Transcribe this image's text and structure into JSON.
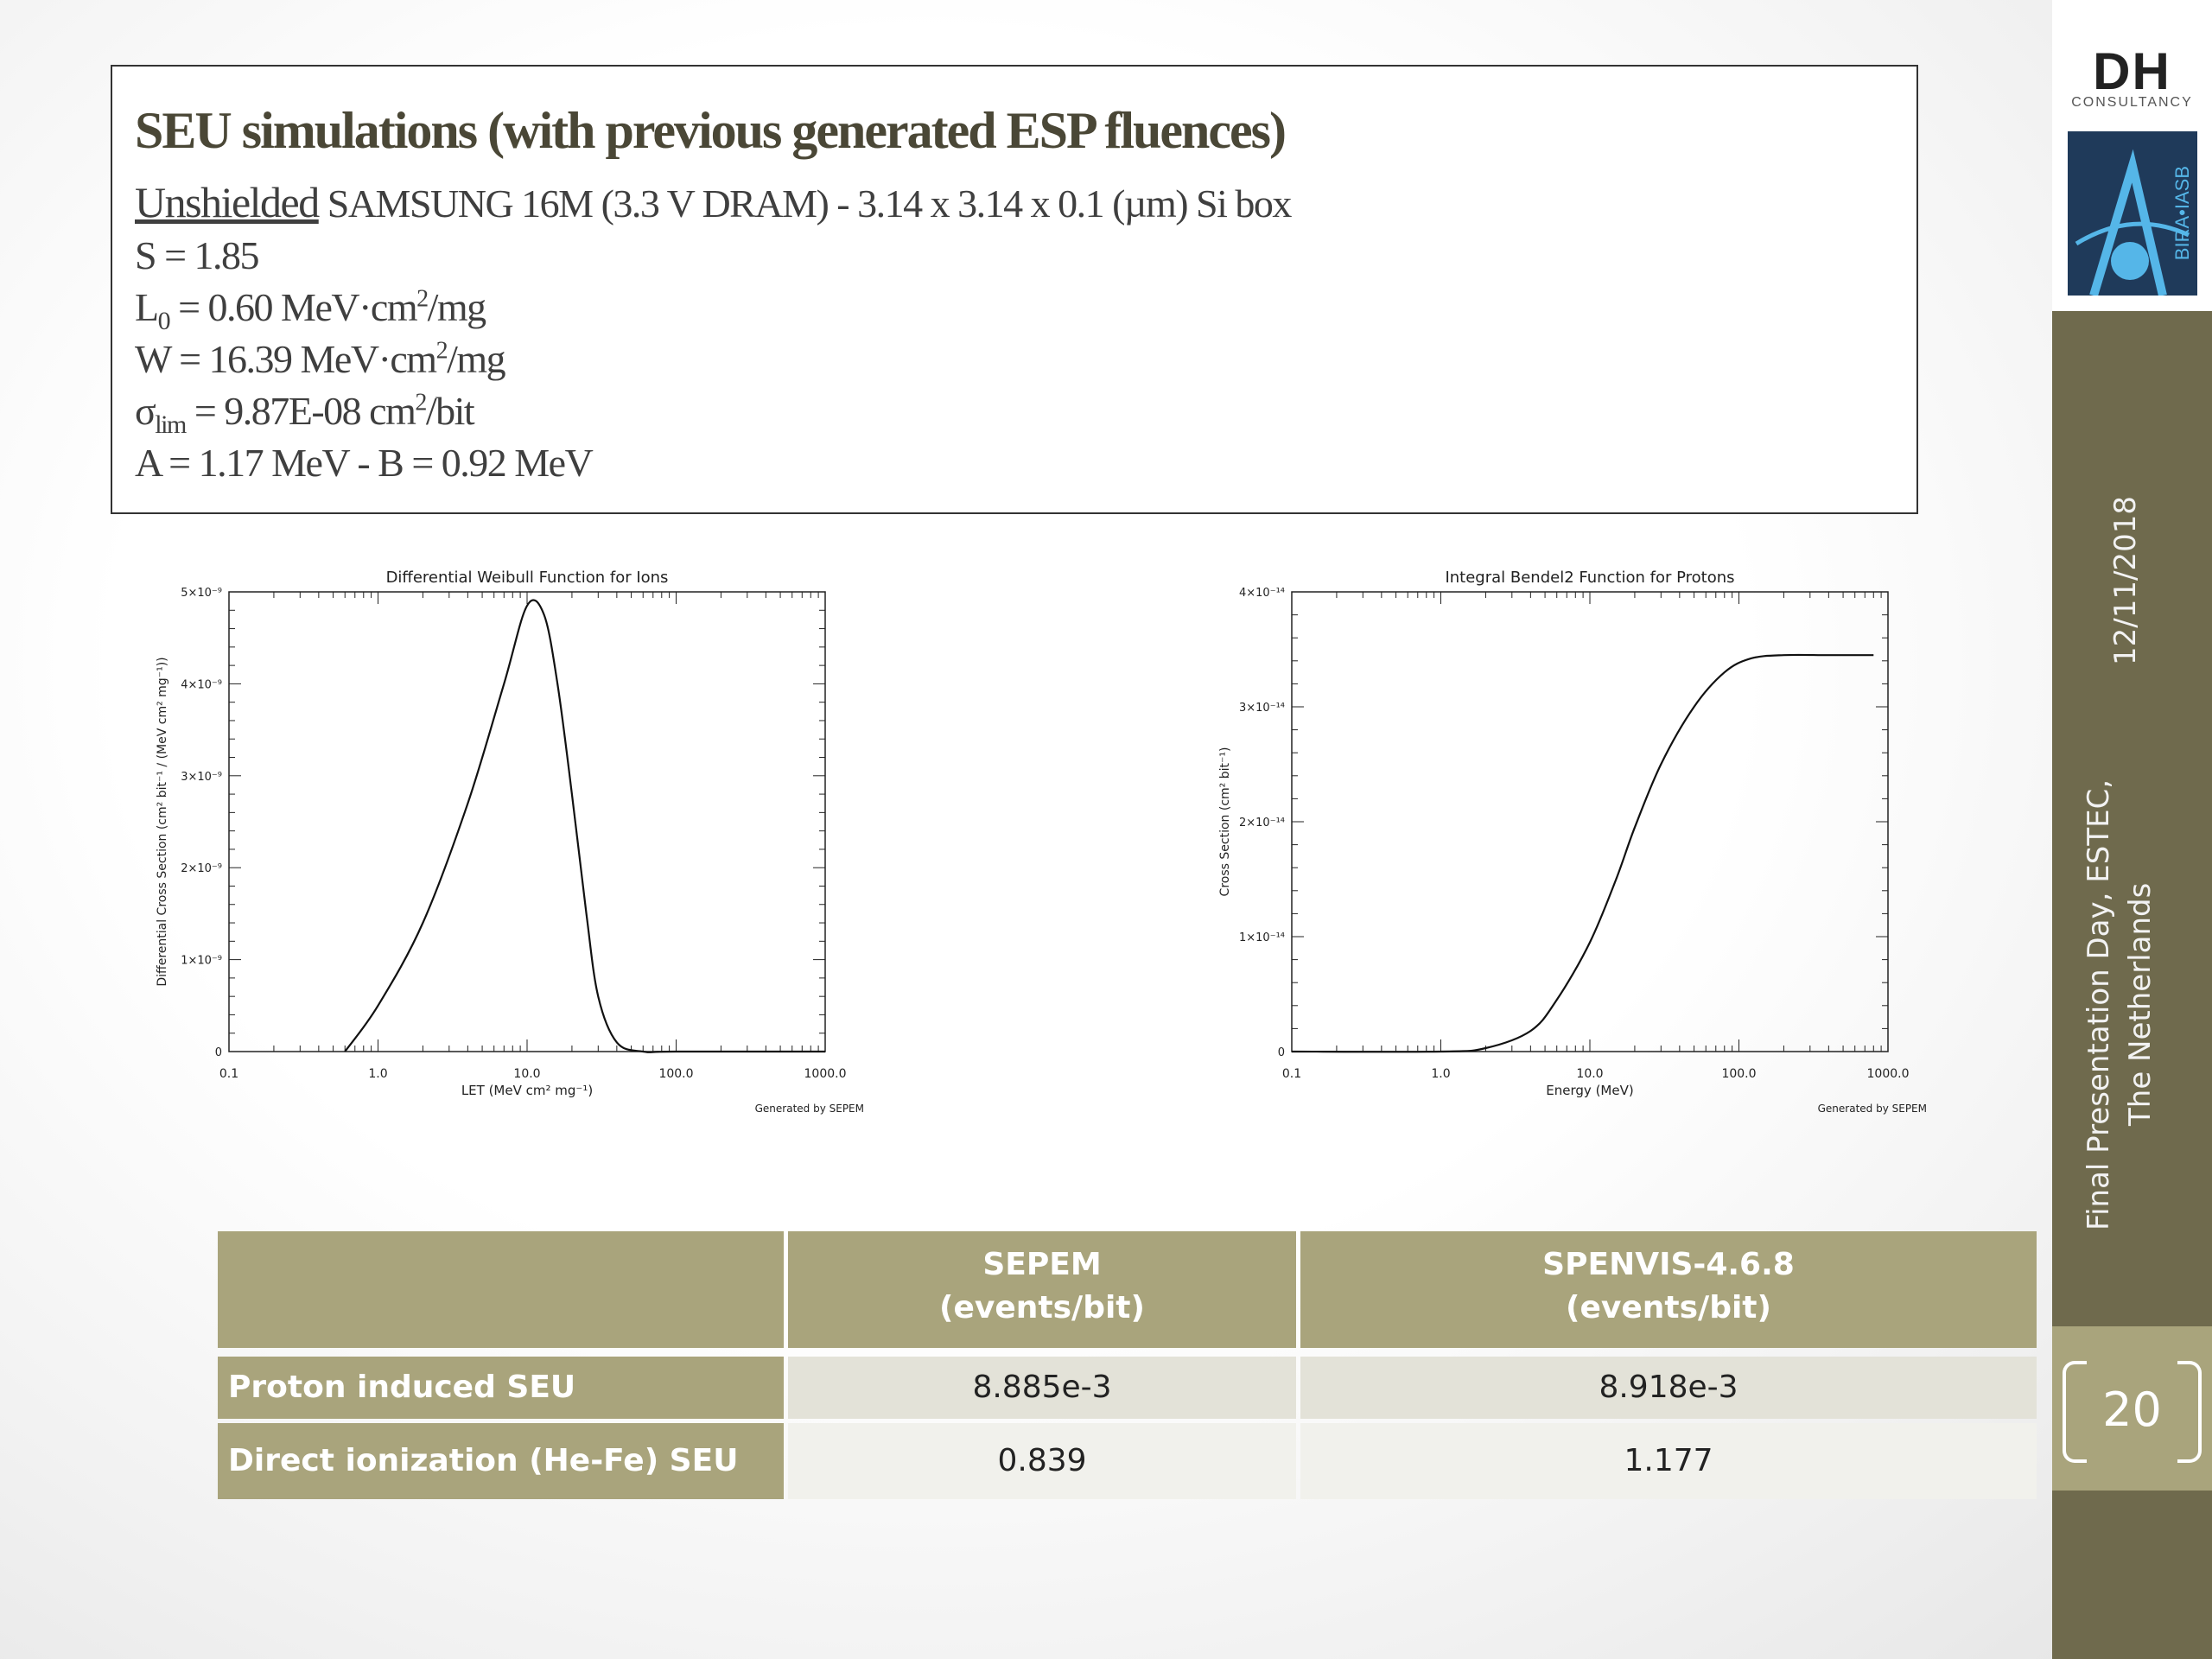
{
  "header": {
    "title": "SEU simulations (with previous generated ESP fluences)",
    "line1_underlined": "Unshielded",
    "line1_rest": " SAMSUNG 16M (3.3 V DRAM) - 3.14 x 3.14 x 0.1 (µm) Si box",
    "s_param": "S = 1.85",
    "l0_sym": "L",
    "l0_sub": "0",
    "l0_rest": " = 0.60 MeV·cm",
    "l0_sup": "2",
    "l0_unit": "/mg",
    "w_rest": "W = 16.39 MeV·cm",
    "w_sup": "2",
    "w_unit": "/mg",
    "sigma_sym": "σ",
    "sigma_sub": "lim",
    "sigma_rest": " = 9.87E-08 cm",
    "sigma_sup": "2",
    "sigma_unit": "/bit",
    "ab": "A = 1.17 MeV  -  B = 0.92 MeV"
  },
  "sidebar": {
    "logo_text": "DH",
    "logo_sub": "CONSULTANCY",
    "logo2_text": "BIRA•IASB",
    "date": "12/11/2018",
    "venue_line1": "Final Presentation Day, ESTEC,",
    "venue_line2": "The Netherlands",
    "page_number": "20"
  },
  "chart_data": [
    {
      "type": "line",
      "title": "Differential Weibull Function for Ions",
      "xlabel": "LET (MeV cm² mg⁻¹)",
      "ylabel": "Differential Cross Section (cm² bit⁻¹ / (MeV cm² mg⁻¹))",
      "x_scale": "log",
      "xlim": [
        0.1,
        1000
      ],
      "ylim": [
        0,
        5e-09
      ],
      "x_ticks": [
        "0.1",
        "1.0",
        "10.0",
        "100.0",
        "1000.0"
      ],
      "y_ticks": [
        "0",
        "1×10⁻⁹",
        "2×10⁻⁹",
        "3×10⁻⁹",
        "4×10⁻⁹",
        "5×10⁻⁹"
      ],
      "footer": "Generated by SEPEM",
      "x": [
        0.6,
        1.0,
        2.0,
        4.0,
        7.0,
        10.0,
        13.0,
        16.0,
        20.0,
        25.0,
        30.0,
        40.0,
        60.0,
        100.0,
        1000.0
      ],
      "y": [
        0.0,
        5e-10,
        1.4e-09,
        2.7e-09,
        4e-09,
        4.85e-09,
        4.75e-09,
        4e-09,
        2.8e-09,
        1.5e-09,
        6e-10,
        1e-10,
        0.0,
        0.0,
        0.0
      ]
    },
    {
      "type": "line",
      "title": "Integral Bendel2 Function for Protons",
      "xlabel": "Energy (MeV)",
      "ylabel": "Cross Section (cm² bit⁻¹)",
      "x_scale": "log",
      "xlim": [
        0.1,
        1000
      ],
      "ylim": [
        0,
        4e-14
      ],
      "x_ticks": [
        "0.1",
        "1.0",
        "10.0",
        "100.0",
        "1000.0"
      ],
      "y_ticks": [
        "0",
        "1×10⁻¹⁴",
        "2×10⁻¹⁴",
        "3×10⁻¹⁴",
        "4×10⁻¹⁴"
      ],
      "footer": "Generated by SEPEM",
      "x": [
        0.1,
        1.0,
        2.0,
        4.0,
        6.0,
        10.0,
        15.0,
        20.0,
        30.0,
        50.0,
        80.0,
        120.0,
        200.0,
        400.0,
        800.0
      ],
      "y": [
        0.0,
        0.0,
        3e-16,
        1.8e-15,
        4.5e-15,
        9.5e-15,
        1.5e-14,
        1.95e-14,
        2.5e-14,
        3e-14,
        3.3e-14,
        3.42e-14,
        3.45e-14,
        3.45e-14,
        3.45e-14
      ]
    }
  ],
  "table": {
    "col1_line1": "SEPEM",
    "col1_line2": "(events/bit)",
    "col2_line1": "SPENVIS-4.6.8",
    "col2_line2": "(events/bit)",
    "rows": [
      {
        "label": "Proton induced SEU",
        "sepem": "8.885e-3",
        "spenvis": "8.918e-3"
      },
      {
        "label": "Direct ionization (He-Fe) SEU",
        "sepem": "0.839",
        "spenvis": "1.177"
      }
    ]
  }
}
